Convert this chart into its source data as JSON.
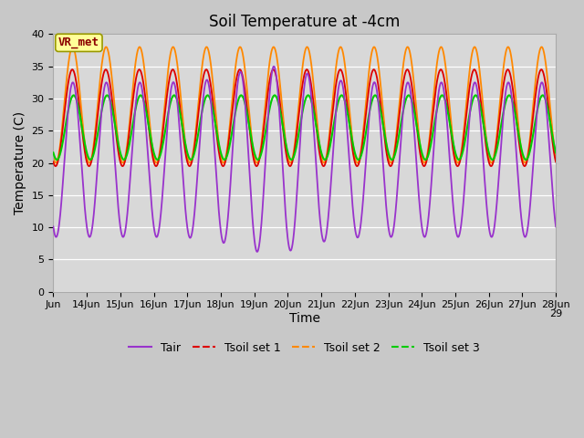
{
  "title": "Soil Temperature at -4cm",
  "xlabel": "Time",
  "ylabel": "Temperature (C)",
  "ylim": [
    0,
    40
  ],
  "yticks": [
    0,
    5,
    10,
    15,
    20,
    25,
    30,
    35,
    40
  ],
  "annotation": "VR_met",
  "line_colors": {
    "Tair": "#9933cc",
    "Tsoil1": "#dd0000",
    "Tsoil2": "#ff8800",
    "Tsoil3": "#00cc00"
  },
  "legend_labels": [
    "Tair",
    "Tsoil set 1",
    "Tsoil set 2",
    "Tsoil set 3"
  ],
  "x_tick_labels": [
    "Jun",
    "14Jun",
    "15Jun",
    "16Jun",
    "17Jun",
    "18Jun",
    "19Jun",
    "20Jun",
    "21Jun",
    "22Jun",
    "23Jun",
    "24Jun",
    "25Jun",
    "26Jun",
    "27Jun",
    "28Jun",
    "29"
  ],
  "title_fontsize": 12,
  "axis_label_fontsize": 10,
  "tick_fontsize": 8
}
